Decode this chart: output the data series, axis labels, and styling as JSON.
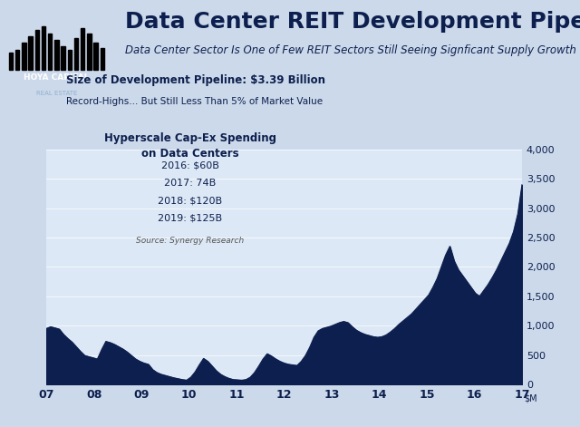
{
  "title": "Data Center REIT Development Pipeline",
  "subtitle": "Data Center Sector Is One of Few REIT Sectors Still Seeing Signficant Supply Growth",
  "background_color": "#ccd9ea",
  "plot_bg_color": "#dce8f5",
  "area_color": "#0d1f4e",
  "x_labels": [
    "07",
    "08",
    "09",
    "10",
    "11",
    "12",
    "13",
    "14",
    "15",
    "16",
    "17"
  ],
  "y_ticks": [
    0,
    500,
    1000,
    1500,
    2000,
    2500,
    3000,
    3500,
    4000
  ],
  "ylim": [
    0,
    4000
  ],
  "y_data": [
    950,
    980,
    960,
    940,
    850,
    780,
    720,
    640,
    560,
    490,
    470,
    450,
    430,
    590,
    730,
    710,
    680,
    640,
    600,
    550,
    490,
    430,
    390,
    360,
    340,
    250,
    200,
    170,
    150,
    130,
    110,
    95,
    80,
    70,
    120,
    210,
    330,
    440,
    390,
    310,
    230,
    170,
    130,
    100,
    80,
    75,
    70,
    80,
    120,
    200,
    310,
    430,
    520,
    480,
    430,
    390,
    360,
    340,
    330,
    320,
    390,
    490,
    630,
    800,
    910,
    950,
    970,
    990,
    1020,
    1050,
    1070,
    1050,
    980,
    920,
    880,
    850,
    830,
    810,
    800,
    810,
    840,
    890,
    950,
    1020,
    1080,
    1140,
    1200,
    1280,
    1360,
    1440,
    1520,
    1650,
    1800,
    2000,
    2200,
    2350,
    2100,
    1950,
    1850,
    1750,
    1650,
    1550,
    1500,
    1600,
    1700,
    1820,
    1950,
    2100,
    2250,
    2400,
    2600,
    2900,
    3400
  ],
  "box1_title": "Size of Development Pipeline: $3.39 Billion",
  "box1_sub": "Record-Highs... But Still Less Than 5% of Market Value",
  "box2_title_line1": "Hyperscale Cap-Ex Spending",
  "box2_title_line2": "on Data Centers",
  "box2_lines": [
    "2016: $60B",
    "2017: 74B",
    "2018: $120B",
    "2019: $125B"
  ],
  "box2_source": "Source: Synergy Research",
  "title_fontsize": 18,
  "subtitle_fontsize": 8.5,
  "tick_fontsize": 9,
  "title_color": "#0d1f4e",
  "text_color": "#0d1f4e"
}
